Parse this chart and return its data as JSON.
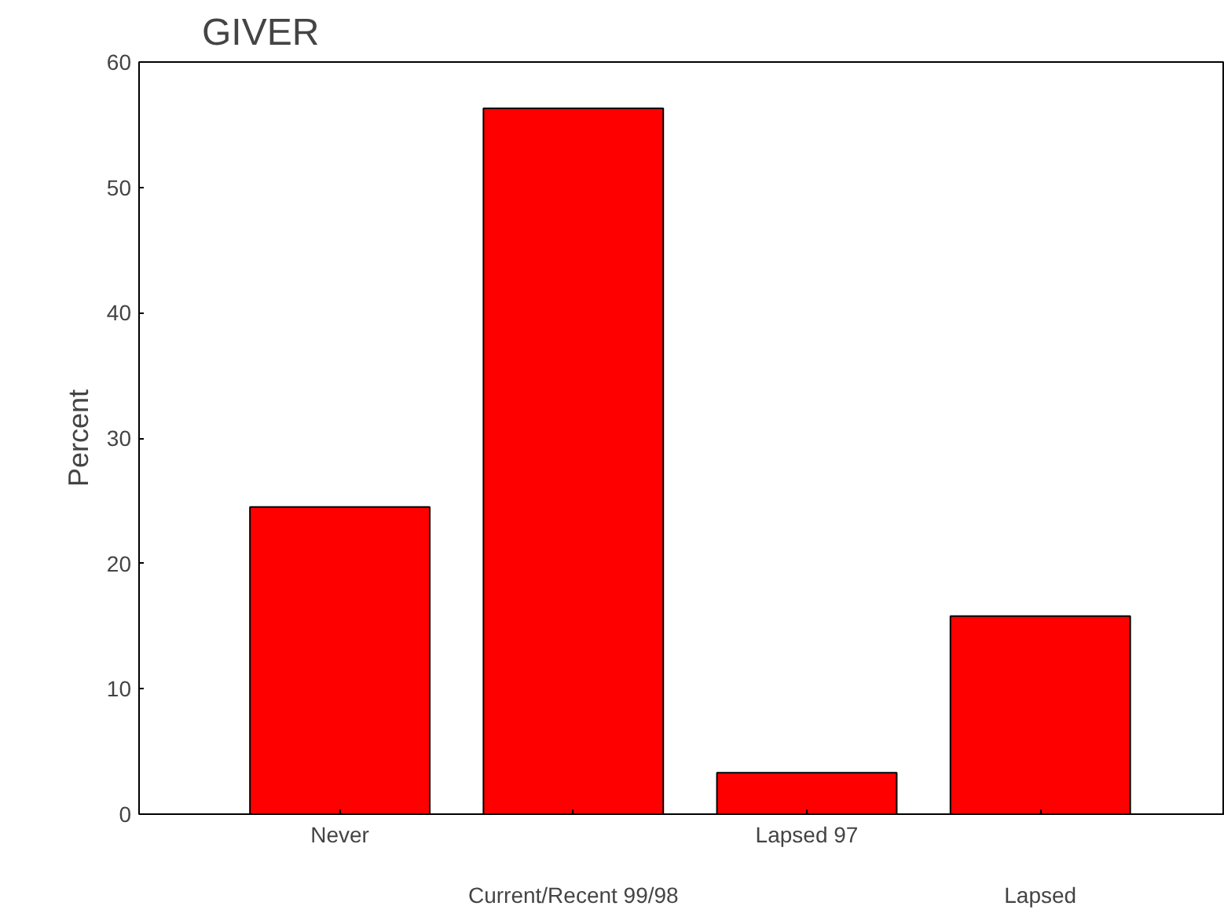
{
  "chart_data": {
    "type": "bar",
    "title": "GIVER",
    "ylabel": "Percent",
    "categories": [
      "Never",
      "Current/Recent 99/98",
      "Lapsed 97",
      "Lapsed"
    ],
    "values": [
      24.5,
      56.3,
      3.3,
      15.8
    ],
    "color": "#ff0000",
    "ylim": [
      0,
      60
    ],
    "yticks": [
      0,
      10,
      20,
      30,
      40,
      50,
      60
    ]
  }
}
